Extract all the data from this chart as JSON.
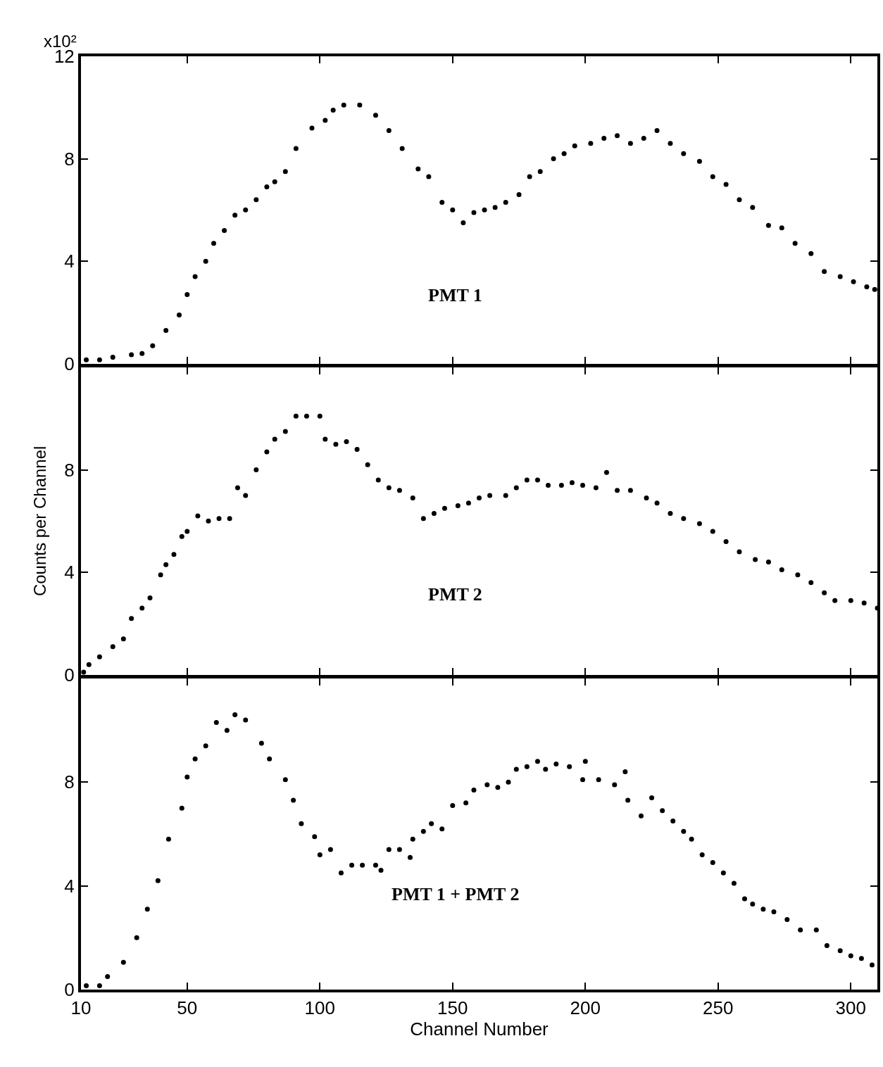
{
  "chart_data": [
    {
      "type": "scatter",
      "annotations": [
        "x10²",
        "PMT 1"
      ],
      "xlim": [
        10,
        310
      ],
      "ylim": [
        0,
        12
      ],
      "xticks": [
        10,
        50,
        100,
        150,
        200,
        250,
        300
      ],
      "yticks": [
        0,
        4,
        8,
        12
      ],
      "tick_labels": "y",
      "marker": "circle",
      "grid": false,
      "legend": false,
      "series": [
        {
          "color": "#000000",
          "x": [
            12,
            17,
            22,
            29,
            33,
            37,
            42,
            47,
            50,
            53,
            57,
            60,
            64,
            68,
            72,
            76,
            80,
            83,
            87,
            91,
            97,
            102,
            105,
            109,
            115,
            121,
            126,
            131,
            137,
            141,
            146,
            150,
            154,
            158,
            162,
            166,
            170,
            175,
            179,
            183,
            188,
            192,
            196,
            202,
            207,
            212,
            217,
            222,
            227,
            232,
            237,
            243,
            248,
            253,
            258,
            263,
            269,
            274,
            279,
            285,
            290,
            296,
            301,
            306,
            309
          ],
          "values": [
            0.15,
            0.15,
            0.25,
            0.35,
            0.4,
            0.7,
            1.3,
            1.9,
            2.7,
            3.4,
            4.0,
            4.7,
            5.2,
            5.8,
            6.0,
            6.4,
            6.9,
            7.1,
            7.5,
            8.4,
            9.2,
            9.5,
            9.9,
            10.1,
            10.1,
            9.7,
            9.1,
            8.4,
            7.6,
            7.3,
            6.3,
            6.0,
            5.5,
            5.9,
            6.0,
            6.1,
            6.3,
            6.6,
            7.3,
            7.5,
            8.0,
            8.2,
            8.5,
            8.6,
            8.8,
            8.9,
            8.6,
            8.8,
            9.1,
            8.6,
            8.2,
            7.9,
            7.3,
            7.0,
            6.4,
            6.1,
            5.4,
            5.3,
            4.7,
            4.3,
            3.6,
            3.4,
            3.2,
            3.0,
            2.9
          ]
        }
      ]
    },
    {
      "type": "scatter",
      "ylabel": "Counts per Channel",
      "annotations": [
        "PMT 2"
      ],
      "xlim": [
        10,
        310
      ],
      "ylim": [
        0,
        12
      ],
      "xticks": [
        10,
        50,
        100,
        150,
        200,
        250,
        300
      ],
      "yticks": [
        0,
        4,
        8
      ],
      "tick_labels": "y",
      "marker": "circle",
      "grid": false,
      "legend": false,
      "series": [
        {
          "color": "#000000",
          "x": [
            11,
            13,
            17,
            22,
            26,
            29,
            33,
            36,
            40,
            42,
            45,
            48,
            50,
            54,
            58,
            62,
            66,
            69,
            72,
            76,
            80,
            83,
            87,
            91,
            95,
            100,
            102,
            106,
            110,
            114,
            118,
            122,
            126,
            130,
            135,
            139,
            143,
            147,
            152,
            156,
            160,
            164,
            170,
            174,
            178,
            182,
            186,
            191,
            195,
            199,
            204,
            208,
            212,
            217,
            223,
            227,
            232,
            237,
            243,
            248,
            253,
            258,
            264,
            269,
            274,
            280,
            285,
            290,
            294,
            300,
            305,
            310
          ],
          "values": [
            0.1,
            0.4,
            0.7,
            1.1,
            1.4,
            2.2,
            2.6,
            3.0,
            3.9,
            4.3,
            4.7,
            5.4,
            5.6,
            6.2,
            6.0,
            6.1,
            6.1,
            7.3,
            7.0,
            8.0,
            8.7,
            9.2,
            9.5,
            10.1,
            10.1,
            10.1,
            9.2,
            9.0,
            9.1,
            8.8,
            8.2,
            7.6,
            7.3,
            7.2,
            6.9,
            6.1,
            6.3,
            6.5,
            6.6,
            6.7,
            6.9,
            7.0,
            7.0,
            7.3,
            7.6,
            7.6,
            7.4,
            7.4,
            7.5,
            7.4,
            7.3,
            7.9,
            7.2,
            7.2,
            6.9,
            6.7,
            6.3,
            6.1,
            5.9,
            5.6,
            5.2,
            4.8,
            4.5,
            4.4,
            4.1,
            3.9,
            3.6,
            3.2,
            2.9,
            2.9,
            2.8,
            2.6
          ]
        }
      ]
    },
    {
      "type": "scatter",
      "xlabel": "Channel Number",
      "annotations": [
        "PMT 1 + PMT 2"
      ],
      "xlim": [
        10,
        310
      ],
      "ylim": [
        0,
        12
      ],
      "xticks": [
        10,
        50,
        100,
        150,
        200,
        250,
        300
      ],
      "yticks": [
        0,
        4,
        8
      ],
      "marker": "circle",
      "grid": false,
      "legend": false,
      "series": [
        {
          "color": "#000000",
          "x": [
            12,
            17,
            20,
            26,
            31,
            35,
            39,
            43,
            48,
            50,
            53,
            57,
            61,
            65,
            68,
            72,
            78,
            81,
            87,
            90,
            93,
            98,
            100,
            104,
            108,
            112,
            116,
            121,
            123,
            126,
            130,
            134,
            135,
            139,
            142,
            146,
            150,
            155,
            158,
            163,
            167,
            171,
            174,
            178,
            182,
            185,
            189,
            194,
            199,
            200,
            205,
            211,
            215,
            216,
            221,
            225,
            229,
            233,
            237,
            240,
            244,
            248,
            252,
            256,
            260,
            263,
            267,
            271,
            276,
            281,
            287,
            291,
            296,
            300,
            304,
            308
          ],
          "values": [
            0.15,
            0.15,
            0.5,
            1.05,
            2.0,
            3.1,
            4.2,
            5.8,
            7.0,
            8.2,
            8.9,
            9.4,
            10.3,
            10.0,
            10.6,
            10.4,
            9.5,
            8.9,
            8.1,
            7.3,
            6.4,
            5.9,
            5.2,
            5.4,
            4.5,
            4.8,
            4.8,
            4.8,
            4.6,
            5.4,
            5.4,
            5.1,
            5.8,
            6.1,
            6.4,
            6.2,
            7.1,
            7.2,
            7.7,
            7.9,
            7.8,
            8.0,
            8.5,
            8.6,
            8.8,
            8.5,
            8.7,
            8.6,
            8.1,
            8.8,
            8.1,
            7.9,
            8.4,
            7.3,
            6.7,
            7.4,
            6.9,
            6.5,
            6.1,
            5.8,
            5.2,
            4.9,
            4.5,
            4.1,
            3.5,
            3.3,
            3.1,
            3.0,
            2.7,
            2.3,
            2.3,
            1.7,
            1.5,
            1.3,
            1.2,
            0.95
          ]
        }
      ]
    }
  ]
}
